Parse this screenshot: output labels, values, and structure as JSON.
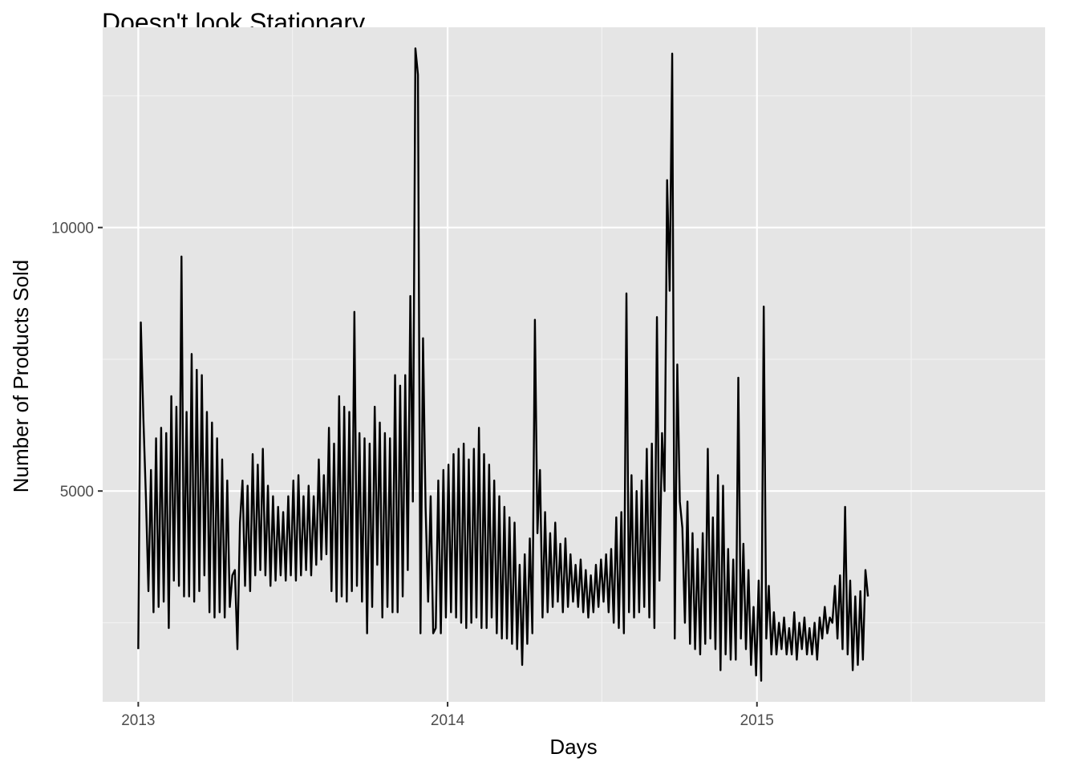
{
  "chart_data": {
    "type": "line",
    "title": "Doesn't look Stationary",
    "xlabel": "Days",
    "ylabel": "Number of Products Sold",
    "x_ticks": [
      "2013",
      "2014",
      "2015"
    ],
    "y_ticks": [
      5000,
      10000
    ],
    "xlim": [
      "2012-11-20",
      "2015-12-07"
    ],
    "ylim": [
      1000,
      13800
    ],
    "grid": true,
    "legend": "none",
    "colors": {
      "panel": "#E5E5E5",
      "grid_major": "#FFFFFF",
      "line": "#000000",
      "tick_text": "#4D4D4D"
    },
    "series": [
      {
        "x_start": "2013-01-01",
        "x_step_days": 3,
        "values": [
          2000,
          8200,
          6400,
          4900,
          3100,
          5400,
          2700,
          6000,
          2800,
          6200,
          2900,
          6100,
          2400,
          6800,
          3300,
          6600,
          3200,
          9450,
          3000,
          6500,
          3000,
          7600,
          2900,
          7300,
          3100,
          7200,
          3400,
          6500,
          2700,
          6300,
          2600,
          6000,
          2700,
          5600,
          2600,
          5200,
          2800,
          3400,
          3500,
          2000,
          4400,
          5200,
          3200,
          5100,
          3100,
          5700,
          3400,
          5500,
          3500,
          5800,
          3400,
          5100,
          3200,
          4900,
          3300,
          4700,
          3400,
          4600,
          3300,
          4900,
          3400,
          5200,
          3300,
          5300,
          3400,
          4900,
          3500,
          5100,
          3400,
          4900,
          3600,
          5600,
          3700,
          5300,
          3800,
          6200,
          3100,
          5900,
          2900,
          6800,
          3000,
          6600,
          2900,
          6500,
          3100,
          8400,
          3200,
          6100,
          2900,
          6000,
          2300,
          5900,
          2800,
          6600,
          3600,
          6300,
          2600,
          6100,
          2800,
          6000,
          2700,
          7200,
          2700,
          7000,
          3000,
          7200,
          3500,
          8700,
          4800,
          13400,
          12900,
          2300,
          7900,
          4700,
          2900,
          4900,
          2300,
          2400,
          5200,
          2300,
          5400,
          2600,
          5500,
          2700,
          5700,
          2600,
          5800,
          2500,
          5900,
          2400,
          5600,
          2500,
          5800,
          2600,
          6200,
          2400,
          5700,
          2400,
          5500,
          2600,
          5200,
          2300,
          4900,
          2200,
          4700,
          2200,
          4500,
          2100,
          4400,
          2000,
          3600,
          1700,
          3800,
          2100,
          4100,
          2300,
          8250,
          4200,
          5400,
          2600,
          4600,
          2700,
          4200,
          2800,
          4400,
          2900,
          4000,
          2700,
          4100,
          2800,
          3800,
          2900,
          3600,
          2800,
          3700,
          2700,
          3500,
          2600,
          3400,
          2700,
          3600,
          2800,
          3700,
          2900,
          3800,
          2700,
          3900,
          2500,
          4500,
          2400,
          4600,
          2300,
          8750,
          2700,
          5300,
          2600,
          5000,
          2700,
          5200,
          2800,
          5800,
          2600,
          5900,
          2400,
          8300,
          3300,
          6100,
          5000,
          10900,
          8800,
          13300,
          2200,
          7400,
          4800,
          4300,
          2500,
          4800,
          2100,
          4200,
          2000,
          3900,
          1900,
          4200,
          2100,
          5800,
          2200,
          4500,
          2000,
          5300,
          1600,
          5100,
          1900,
          3900,
          1800,
          3700,
          1800,
          7150,
          2200,
          4000,
          2000,
          3500,
          1700,
          2800,
          1500,
          3300,
          1400,
          8500,
          2200,
          3200,
          1900,
          2700,
          1900,
          2500,
          2000,
          2600,
          1900,
          2400,
          1900,
          2700,
          1800,
          2500,
          2000,
          2600,
          1900,
          2400,
          1900,
          2500,
          1800,
          2600,
          2200,
          2800,
          2300,
          2600,
          2500,
          3200,
          2200,
          3400,
          2000,
          4700,
          1900,
          3300,
          1600,
          3000,
          1700,
          3100,
          1800,
          3500,
          3000
        ]
      }
    ]
  }
}
